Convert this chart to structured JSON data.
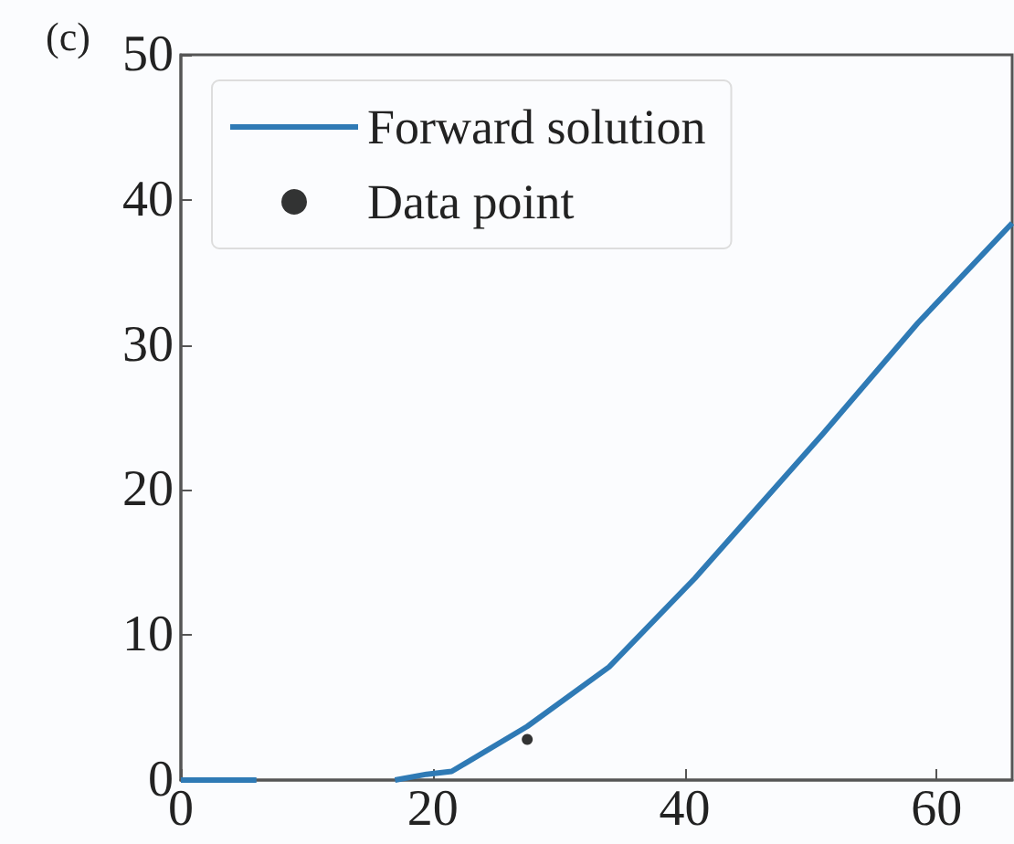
{
  "chart_data": {
    "type": "line",
    "title": "(c)",
    "xlim": [
      0,
      66
    ],
    "xticks": [
      0,
      20,
      40,
      60
    ],
    "ylim": [
      0,
      50
    ],
    "yticks": [
      0,
      10,
      20,
      30,
      40,
      50
    ],
    "grid": false,
    "legend": "top left",
    "series": [
      {
        "name": "Forward solution",
        "color": "#2f7ab5",
        "marker": "none",
        "x": [
          0,
          6,
          12,
          17,
          19.5,
          21.5,
          27.5,
          34,
          40.8,
          51,
          58.5,
          66
        ],
        "values": [
          0,
          0,
          null,
          0,
          0.4,
          0.6,
          3.7,
          7.8,
          13.9,
          23.9,
          31.5,
          38.4
        ]
      },
      {
        "name": "Data point",
        "type": "scatter",
        "color": "#000000",
        "marker": "circle",
        "x": [
          27.5
        ],
        "values": [
          2.8
        ]
      }
    ]
  }
}
